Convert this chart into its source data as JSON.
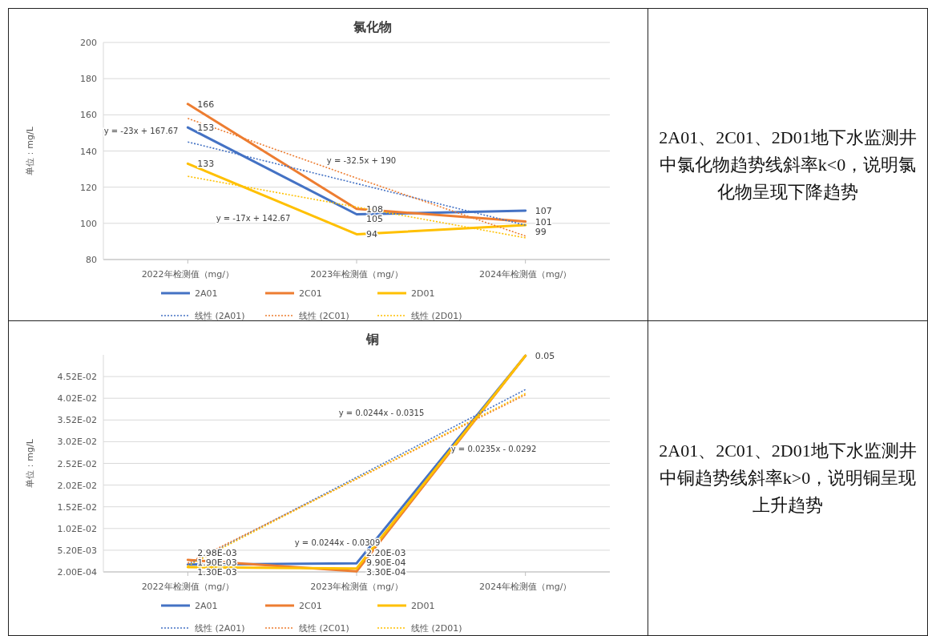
{
  "chart_data": [
    {
      "type": "line",
      "title": "氯化物",
      "ylabel": "单位：mg/L",
      "categories": [
        "2022年检测值（mg/）",
        "2023年检测值（mg/）",
        "2024年检测值（mg/）"
      ],
      "ylim": [
        80,
        200
      ],
      "yticks": [
        80,
        100,
        120,
        140,
        160,
        180,
        200
      ],
      "grid": "y",
      "legend": "bottom",
      "series": [
        {
          "name": "2A01",
          "color": "#4472c4",
          "values": [
            153,
            105,
            107
          ],
          "value_labels": [
            "153",
            "105",
            "107"
          ]
        },
        {
          "name": "2C01",
          "color": "#ed7d31",
          "values": [
            166,
            108,
            101
          ],
          "value_labels": [
            "166",
            "108",
            "101"
          ]
        },
        {
          "name": "2D01",
          "color": "#ffc000",
          "values": [
            133,
            94,
            99
          ],
          "value_labels": [
            "133",
            "94",
            "99"
          ]
        },
        {
          "name": "线性 (2A01)",
          "color": "#4472c4",
          "line_style": "dotted",
          "values": [
            145,
            122,
            99
          ]
        },
        {
          "name": "线性 (2C01)",
          "color": "#ed7d31",
          "line_style": "dotted",
          "values": [
            158,
            125,
            93
          ]
        },
        {
          "name": "线性 (2D01)",
          "color": "#ffc000",
          "line_style": "dotted",
          "values": [
            126,
            109,
            92
          ]
        }
      ],
      "annotations": [
        "y = -23x + 167.67",
        "y = -32.5x + 190",
        "y = -17x + 142.67"
      ]
    },
    {
      "type": "other",
      "annotations": [
        "2A01、2C01、2D01地下水监测井中氯化物趋势线斜率k<0，说明氯化物呈现下降趋势"
      ]
    },
    {
      "type": "line",
      "title": "铜",
      "ylabel": "单位：mg/L",
      "categories": [
        "2022年检测值（mg/）",
        "2023年检测值（mg/）",
        "2024年检测值（mg/）"
      ],
      "ylim": [
        0.0002,
        0.0502
      ],
      "yticks": [
        {
          "value": 0.0002,
          "label": "2.00E-04"
        },
        {
          "value": 0.0052,
          "label": "5.20E-03"
        },
        {
          "value": 0.0102,
          "label": "1.02E-02"
        },
        {
          "value": 0.0152,
          "label": "1.52E-02"
        },
        {
          "value": 0.0202,
          "label": "2.02E-02"
        },
        {
          "value": 0.0252,
          "label": "2.52E-02"
        },
        {
          "value": 0.0302,
          "label": "3.02E-02"
        },
        {
          "value": 0.0352,
          "label": "3.52E-02"
        },
        {
          "value": 0.0402,
          "label": "4.02E-02"
        },
        {
          "value": 0.0452,
          "label": "4.52E-02"
        }
      ],
      "grid": "y",
      "legend": "bottom",
      "series": [
        {
          "name": "2A01",
          "color": "#4472c4",
          "values": [
            0.0019,
            0.0022,
            0.05
          ],
          "value_labels": [
            "1.90E-03",
            "2.20E-03",
            null
          ]
        },
        {
          "name": "2C01",
          "color": "#ed7d31",
          "values": [
            0.00298,
            0.00033,
            0.05
          ],
          "value_labels": [
            "2.98E-03",
            "3.30E-04",
            null
          ]
        },
        {
          "name": "2D01",
          "color": "#ffc000",
          "values": [
            0.0013,
            0.00099,
            0.05
          ],
          "value_labels": [
            "1.30E-03",
            "9.90E-04",
            "0.05"
          ]
        },
        {
          "name": "线性 (2A01)",
          "color": "#4472c4",
          "line_style": "dotted",
          "values": [
            0.0018,
            0.022,
            0.0422
          ]
        },
        {
          "name": "线性 (2C01)",
          "color": "#ed7d31",
          "line_style": "dotted",
          "values": [
            0.0022,
            0.0216,
            0.041
          ]
        },
        {
          "name": "线性 (2D01)",
          "color": "#ffc000",
          "line_style": "dotted",
          "values": [
            0.0016,
            0.0217,
            0.0413
          ]
        }
      ],
      "annotations": [
        "y = 0.0244x - 0.0315",
        "y = 0.0235x - 0.0292",
        "y = 0.0244x - 0.0309"
      ]
    },
    {
      "type": "other",
      "annotations": [
        "2A01、2C01、2D01地下水监测井中铜趋势线斜率k>0，说明铜呈现上升趋势"
      ]
    }
  ]
}
